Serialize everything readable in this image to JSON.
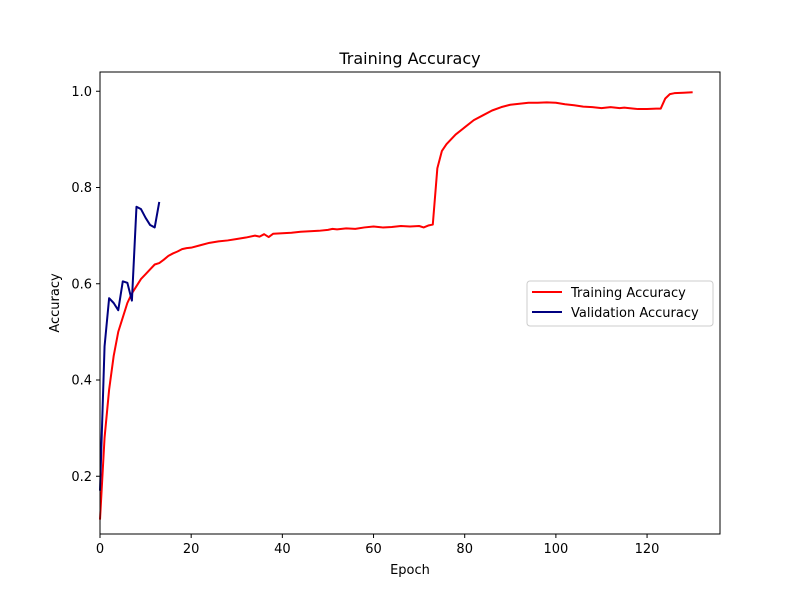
{
  "chart_data": {
    "type": "line",
    "title": "Training Accuracy",
    "xlabel": "Epoch",
    "ylabel": "Accuracy",
    "xlim": [
      0,
      136
    ],
    "ylim": [
      0.08,
      1.04
    ],
    "xticks": [
      0,
      20,
      40,
      60,
      80,
      100,
      120
    ],
    "yticks": [
      0.2,
      0.4,
      0.6,
      0.8,
      1.0
    ],
    "ytick_labels": [
      "0.2",
      "0.4",
      "0.6",
      "0.8",
      "1.0"
    ],
    "grid": false,
    "legend_position": "center-right",
    "series": [
      {
        "name": "Training Accuracy",
        "color": "#ff0000",
        "x": [
          0,
          1,
          2,
          3,
          4,
          5,
          6,
          7,
          8,
          9,
          10,
          11,
          12,
          13,
          14,
          15,
          16,
          17,
          18,
          19,
          20,
          22,
          24,
          26,
          28,
          30,
          32,
          34,
          35,
          36,
          37,
          38,
          40,
          42,
          44,
          46,
          48,
          50,
          51,
          52,
          54,
          56,
          58,
          60,
          62,
          64,
          66,
          68,
          70,
          71,
          72,
          73,
          74,
          75,
          76,
          78,
          80,
          82,
          84,
          86,
          88,
          90,
          92,
          94,
          96,
          98,
          100,
          102,
          104,
          106,
          108,
          110,
          112,
          114,
          115,
          116,
          118,
          120,
          122,
          123,
          124,
          125,
          126,
          128,
          130
        ],
        "y": [
          0.11,
          0.28,
          0.38,
          0.45,
          0.5,
          0.53,
          0.56,
          0.58,
          0.595,
          0.61,
          0.62,
          0.63,
          0.64,
          0.643,
          0.65,
          0.658,
          0.663,
          0.667,
          0.672,
          0.674,
          0.675,
          0.68,
          0.685,
          0.688,
          0.69,
          0.693,
          0.696,
          0.7,
          0.698,
          0.703,
          0.697,
          0.704,
          0.705,
          0.706,
          0.708,
          0.709,
          0.71,
          0.712,
          0.714,
          0.713,
          0.715,
          0.714,
          0.717,
          0.719,
          0.717,
          0.718,
          0.72,
          0.719,
          0.72,
          0.717,
          0.721,
          0.723,
          0.84,
          0.876,
          0.89,
          0.91,
          0.925,
          0.94,
          0.95,
          0.96,
          0.967,
          0.972,
          0.974,
          0.976,
          0.976,
          0.977,
          0.976,
          0.973,
          0.971,
          0.968,
          0.967,
          0.965,
          0.967,
          0.965,
          0.966,
          0.965,
          0.963,
          0.963,
          0.964,
          0.964,
          0.985,
          0.994,
          0.996,
          0.997,
          0.998
        ]
      },
      {
        "name": "Validation Accuracy",
        "color": "#000080",
        "x": [
          0,
          1,
          2,
          3,
          4,
          5,
          6,
          7,
          8,
          9,
          10,
          11,
          12,
          13
        ],
        "y": [
          0.17,
          0.47,
          0.57,
          0.56,
          0.545,
          0.605,
          0.602,
          0.565,
          0.76,
          0.755,
          0.737,
          0.722,
          0.717,
          0.77
        ]
      }
    ]
  }
}
